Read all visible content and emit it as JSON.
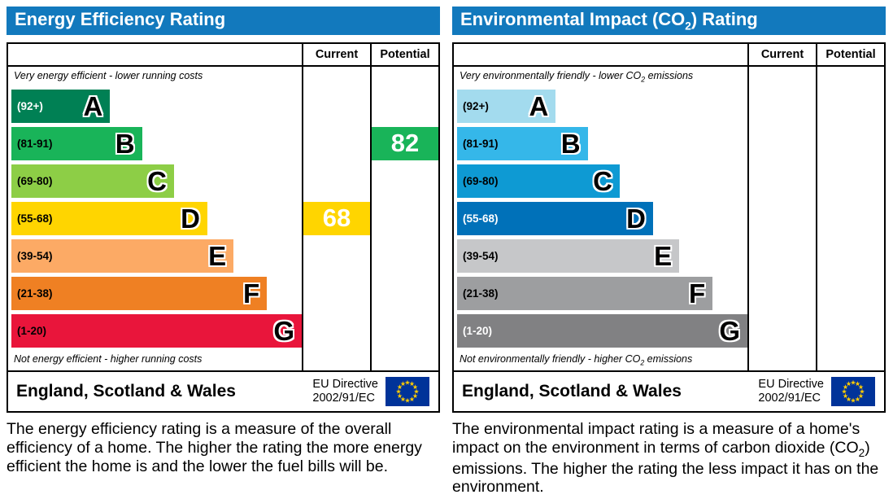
{
  "theme": {
    "title": {
      "color": "#1279bd"
    }
  },
  "eu_flag": {
    "field_color": "#003399",
    "star_color": "#ffcc00"
  },
  "chart_data": [
    {
      "type": "bar",
      "title": "Energy Efficiency Rating",
      "categories": [
        "A (92+)",
        "B (81-91)",
        "C (69-80)",
        "D (55-68)",
        "E (39-54)",
        "F (21-38)",
        "G (1-20)"
      ],
      "bar_lengths_pct": [
        34,
        45,
        56,
        67.5,
        76.5,
        88,
        100
      ],
      "band_colors": [
        "#008054",
        "#19b459",
        "#8dce46",
        "#ffd500",
        "#fcaa65",
        "#ef8023",
        "#e9153b"
      ],
      "series": [
        {
          "name": "Current",
          "value": 68,
          "band": "D"
        },
        {
          "name": "Potential",
          "value": 82,
          "band": "B"
        }
      ],
      "value_range": [
        1,
        100
      ],
      "legend_position": "none"
    },
    {
      "type": "bar",
      "title": "Environmental Impact (CO2) Rating",
      "categories": [
        "A (92+)",
        "B (81-91)",
        "C (69-80)",
        "D (55-68)",
        "E (39-54)",
        "F (21-38)",
        "G (1-20)"
      ],
      "bar_lengths_pct": [
        34,
        45,
        56,
        67.5,
        76.5,
        88,
        100
      ],
      "band_colors": [
        "#a3dbee",
        "#35b7e9",
        "#0e9ad3",
        "#0071b9",
        "#c6c7c9",
        "#9d9ea0",
        "#818183"
      ],
      "series": [
        {
          "name": "Current",
          "value": null,
          "band": null
        },
        {
          "name": "Potential",
          "value": null,
          "band": null
        }
      ],
      "value_range": [
        1,
        100
      ],
      "legend_position": "none"
    }
  ],
  "panels": [
    {
      "title": {
        "pre": "Energy Efficiency Rating",
        "sub": "",
        "post": ""
      },
      "columns": {
        "current": "Current",
        "potential": "Potential"
      },
      "top_note": {
        "pre": "Very energy efficient - lower running costs",
        "sub": "",
        "post": ""
      },
      "bottom_note": {
        "pre": "Not energy efficient - higher running costs",
        "sub": "",
        "post": ""
      },
      "bands": [
        {
          "label": "(92+)",
          "letter": "A",
          "color": "#008054",
          "width_pct": 34,
          "label_color": "#ffffff"
        },
        {
          "label": "(81-91)",
          "letter": "B",
          "color": "#19b459",
          "width_pct": 45
        },
        {
          "label": "(69-80)",
          "letter": "C",
          "color": "#8dce46",
          "width_pct": 56
        },
        {
          "label": "(55-68)",
          "letter": "D",
          "color": "#ffd500",
          "width_pct": 67.5
        },
        {
          "label": "(39-54)",
          "letter": "E",
          "color": "#fcaa65",
          "width_pct": 76.5
        },
        {
          "label": "(21-38)",
          "letter": "F",
          "color": "#ef8023",
          "width_pct": 88
        },
        {
          "label": "(1-20)",
          "letter": "G",
          "color": "#e9153b",
          "width_pct": 100
        }
      ],
      "current": {
        "value": "68",
        "band": "D",
        "color": "#ffd500"
      },
      "potential": {
        "value": "82",
        "band": "B",
        "color": "#19b459"
      },
      "footer": {
        "region": "England, Scotland & Wales",
        "directive1": "EU Directive",
        "directive2": "2002/91/EC"
      },
      "description": {
        "pre": "The energy efficiency rating is a measure of the overall efficiency of a home. The higher the rating the more energy efficient the home is and the lower the fuel bills will be.",
        "sub": "",
        "post": ""
      }
    },
    {
      "title": {
        "pre": "Environmental Impact (CO",
        "sub": "2",
        "post": ") Rating"
      },
      "columns": {
        "current": "Current",
        "potential": "Potential"
      },
      "top_note": {
        "pre": "Very environmentally friendly - lower CO",
        "sub": "2",
        "post": " emissions"
      },
      "bottom_note": {
        "pre": "Not environmentally friendly - higher CO",
        "sub": "2",
        "post": " emissions"
      },
      "bands": [
        {
          "label": "(92+)",
          "letter": "A",
          "color": "#a3dbee",
          "width_pct": 34
        },
        {
          "label": "(81-91)",
          "letter": "B",
          "color": "#35b7e9",
          "width_pct": 45
        },
        {
          "label": "(69-80)",
          "letter": "C",
          "color": "#0e9ad3",
          "width_pct": 56
        },
        {
          "label": "(55-68)",
          "letter": "D",
          "color": "#0071b9",
          "width_pct": 67.5,
          "label_color": "#ffffff"
        },
        {
          "label": "(39-54)",
          "letter": "E",
          "color": "#c6c7c9",
          "width_pct": 76.5
        },
        {
          "label": "(21-38)",
          "letter": "F",
          "color": "#9d9ea0",
          "width_pct": 88
        },
        {
          "label": "(1-20)",
          "letter": "G",
          "color": "#818183",
          "width_pct": 100,
          "label_color": "#ffffff"
        }
      ],
      "footer": {
        "region": "England, Scotland & Wales",
        "directive1": "EU Directive",
        "directive2": "2002/91/EC"
      },
      "description": {
        "pre": "The environmental impact rating is a measure of a home's impact on the environment in terms of carbon dioxide (CO",
        "sub": "2",
        "post": ") emissions. The higher the rating the less impact it has on the environment."
      }
    }
  ]
}
